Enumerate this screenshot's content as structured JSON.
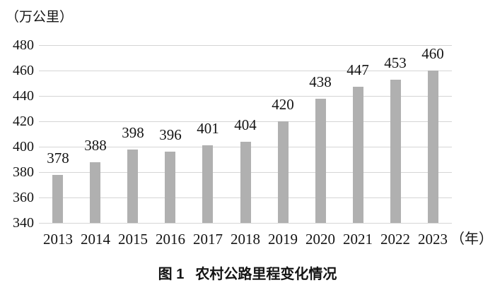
{
  "figure": {
    "caption": {
      "figure_label": "图 1",
      "title": "农村公路里程变化情况"
    }
  },
  "chart_data": {
    "type": "bar",
    "title": "图 1 农村公路里程变化情况",
    "categories": [
      "2013",
      "2014",
      "2015",
      "2016",
      "2017",
      "2018",
      "2019",
      "2020",
      "2021",
      "2022",
      "2023"
    ],
    "values": [
      378,
      388,
      398,
      396,
      401,
      404,
      420,
      438,
      447,
      453,
      460
    ],
    "xlabel": "（年）",
    "ylabel": "（万公里）",
    "ylim": [
      340,
      480
    ],
    "y_ticks": [
      340,
      360,
      380,
      400,
      420,
      440,
      460,
      480
    ],
    "grid": true,
    "legend": false,
    "bar_color": "#B0B0B0",
    "gridline_color": "#D5D5D5",
    "text_color": "#141414"
  }
}
